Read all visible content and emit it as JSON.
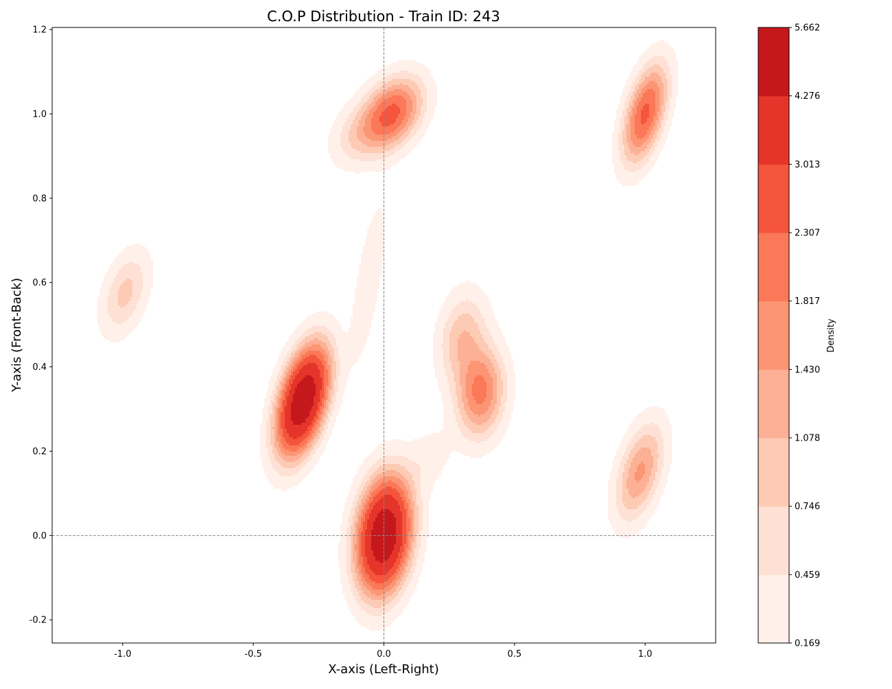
{
  "chart_data": {
    "type": "heatmap",
    "subtype": "kde-filled-contour",
    "title": "C.O.P Distribution - Train ID: 243",
    "xlabel": "X-axis (Left-Right)",
    "ylabel": "Y-axis (Front-Back)",
    "xlim": [
      -1.27,
      1.27
    ],
    "ylim": [
      -0.255,
      1.205
    ],
    "x_ticks": [
      -1.0,
      -0.5,
      0.0,
      0.5,
      1.0
    ],
    "x_tick_labels": [
      "-1.0",
      "-0.5",
      "0.0",
      "0.5",
      "1.0"
    ],
    "y_ticks": [
      -0.2,
      0.0,
      0.2,
      0.4,
      0.6,
      0.8,
      1.0,
      1.2
    ],
    "y_tick_labels": [
      "-0.2",
      "0.0",
      "0.2",
      "0.4",
      "0.6",
      "0.8",
      "1.0",
      "1.2"
    ],
    "reference_lines": {
      "x": 0.0,
      "y": 0.0,
      "style": "dashed",
      "color": "#888888"
    },
    "colormap": "Reds",
    "colorbar": {
      "label": "Density",
      "levels": [
        0.169,
        0.459,
        0.746,
        1.078,
        1.43,
        1.817,
        2.307,
        3.013,
        4.276,
        5.662
      ],
      "level_labels": [
        "0.169",
        "0.459",
        "0.746",
        "1.078",
        "1.430",
        "1.817",
        "2.307",
        "3.013",
        "4.276",
        "5.662"
      ],
      "colors": [
        "#fff0e9",
        "#fee1d4",
        "#fdcab4",
        "#fcb095",
        "#fc9574",
        "#fb7858",
        "#f5553c",
        "#e5342a",
        "#c5181c",
        "#a50f15"
      ]
    },
    "clusters": [
      {
        "x": 0.0,
        "y": 0.0,
        "sx": 0.065,
        "sy": 0.085,
        "rho": 0.2,
        "peak": 5.662
      },
      {
        "x": -0.31,
        "y": 0.32,
        "sx": 0.062,
        "sy": 0.08,
        "rho": 0.45,
        "peak": 5.662
      },
      {
        "x": 0.03,
        "y": 1.0,
        "sx": 0.075,
        "sy": 0.055,
        "rho": 0.35,
        "peak": 2.45
      },
      {
        "x": -0.1,
        "y": 0.95,
        "sx": 0.07,
        "sy": 0.05,
        "rho": 0.3,
        "peak": 0.6
      },
      {
        "x": 1.0,
        "y": 1.0,
        "sx": 0.055,
        "sy": 0.075,
        "rho": 0.5,
        "peak": 2.45
      },
      {
        "x": 0.37,
        "y": 0.34,
        "sx": 0.06,
        "sy": 0.07,
        "rho": 0.1,
        "peak": 1.95
      },
      {
        "x": 0.3,
        "y": 0.47,
        "sx": 0.06,
        "sy": 0.07,
        "rho": 0.2,
        "peak": 1.0
      },
      {
        "x": 0.98,
        "y": 0.15,
        "sx": 0.06,
        "sy": 0.075,
        "rho": 0.45,
        "peak": 1.5
      },
      {
        "x": -0.99,
        "y": 0.575,
        "sx": 0.06,
        "sy": 0.065,
        "rho": 0.4,
        "peak": 0.85
      },
      {
        "x": -0.06,
        "y": 0.6,
        "sx": 0.045,
        "sy": 0.13,
        "rho": 0.7,
        "peak": 0.42
      },
      {
        "x": 0.17,
        "y": 0.18,
        "sx": 0.06,
        "sy": 0.05,
        "rho": 0.3,
        "peak": 0.32
      }
    ]
  }
}
